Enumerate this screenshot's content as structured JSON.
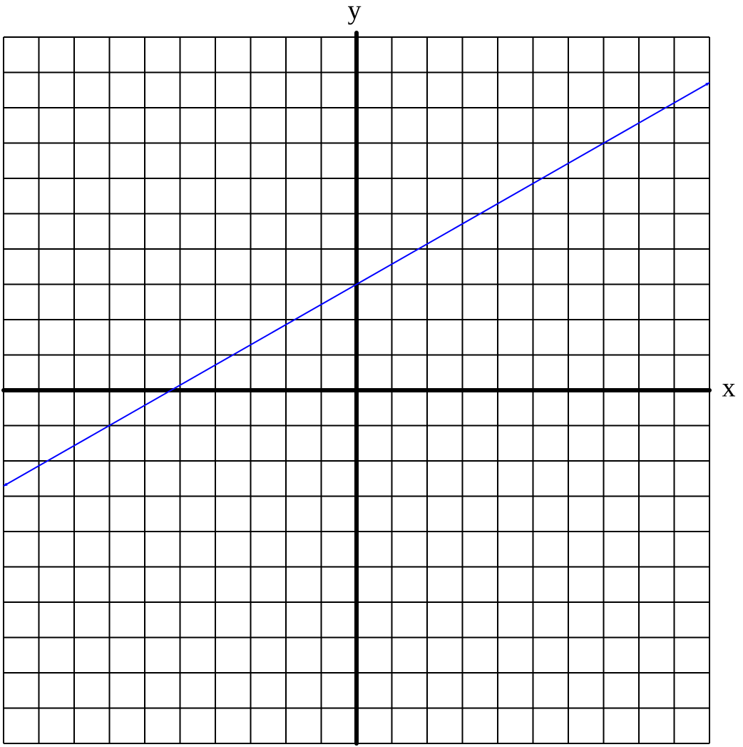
{
  "chart_data": {
    "type": "line",
    "x_label": "x",
    "y_label": "y",
    "x": [
      -10,
      10
    ],
    "values": [
      -2.71,
      8.71
    ],
    "color": "#0000ff",
    "xlim": [
      -10,
      10
    ],
    "ylim": [
      -10,
      10
    ],
    "xticks": [
      -10,
      -9,
      -8,
      -7,
      -6,
      -5,
      -4,
      -3,
      -2,
      -1,
      0,
      1,
      2,
      3,
      4,
      5,
      6,
      7,
      8,
      9,
      10
    ],
    "yticks": [
      -10,
      -9,
      -8,
      -7,
      -6,
      -5,
      -4,
      -3,
      -2,
      -1,
      0,
      1,
      2,
      3,
      4,
      5,
      6,
      7,
      8,
      9,
      10
    ],
    "grid": true
  }
}
